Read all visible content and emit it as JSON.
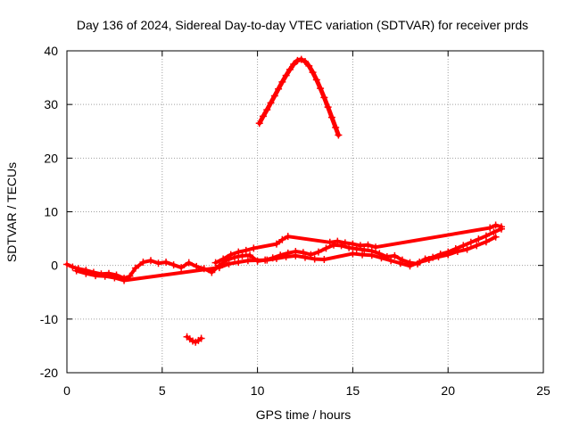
{
  "chart_data": {
    "type": "scatter",
    "title": "Day 136 of 2024, Sidereal Day-to-day VTEC variation (SDTVAR) for receiver prds",
    "xlabel": "GPS time / hours",
    "ylabel": "SDTVAR / TECUs",
    "xlim": [
      0,
      25
    ],
    "ylim": [
      -20,
      40
    ],
    "x_ticks": [
      0,
      5,
      10,
      15,
      20,
      25
    ],
    "y_ticks": [
      -20,
      -10,
      0,
      10,
      20,
      30,
      40
    ],
    "x_tick_labels": [
      "0",
      "5",
      "10",
      "15",
      "20",
      "25"
    ],
    "y_tick_labels": [
      "-20",
      "-10",
      "0",
      "10",
      "20",
      "30",
      "40"
    ],
    "grid": true,
    "marker_color": "#ff0000",
    "series": [
      {
        "name": "main-trace",
        "points": [
          [
            0.0,
            0.2
          ],
          [
            0.3,
            -0.3
          ],
          [
            0.6,
            -0.6
          ],
          [
            1.0,
            -0.9
          ],
          [
            1.4,
            -1.3
          ],
          [
            1.8,
            -1.6
          ],
          [
            2.2,
            -1.5
          ],
          [
            2.6,
            -1.8
          ],
          [
            3.0,
            -2.4
          ],
          [
            3.3,
            -2.0
          ],
          [
            3.6,
            -0.5
          ],
          [
            4.0,
            0.6
          ],
          [
            4.4,
            0.9
          ],
          [
            4.8,
            0.4
          ],
          [
            5.2,
            0.6
          ],
          [
            5.6,
            0.1
          ],
          [
            6.0,
            -0.4
          ],
          [
            6.4,
            0.5
          ],
          [
            6.8,
            -0.2
          ],
          [
            7.2,
            -0.6
          ],
          [
            7.6,
            -1.3
          ],
          [
            8.0,
            0.0
          ],
          [
            8.4,
            1.0
          ],
          [
            8.8,
            1.5
          ],
          [
            9.2,
            1.8
          ],
          [
            9.6,
            1.9
          ],
          [
            10.0,
            0.8
          ],
          [
            10.4,
            1.0
          ],
          [
            10.8,
            1.4
          ],
          [
            11.2,
            1.9
          ],
          [
            11.6,
            2.3
          ],
          [
            12.0,
            2.6
          ],
          [
            12.4,
            2.4
          ],
          [
            12.8,
            2.0
          ],
          [
            13.2,
            2.5
          ],
          [
            13.6,
            3.2
          ],
          [
            14.0,
            3.8
          ],
          [
            14.4,
            3.7
          ],
          [
            14.8,
            3.3
          ],
          [
            15.2,
            3.1
          ],
          [
            15.6,
            2.9
          ],
          [
            16.0,
            2.7
          ],
          [
            16.4,
            2.2
          ],
          [
            16.8,
            1.6
          ],
          [
            17.2,
            1.8
          ],
          [
            17.6,
            1.0
          ],
          [
            18.0,
            0.5
          ],
          [
            18.4,
            0.3
          ],
          [
            18.8,
            1.2
          ],
          [
            19.2,
            1.5
          ],
          [
            19.6,
            2.1
          ],
          [
            20.0,
            2.5
          ],
          [
            20.4,
            3.1
          ],
          [
            20.8,
            3.7
          ],
          [
            21.2,
            4.3
          ],
          [
            21.6,
            4.9
          ],
          [
            22.0,
            5.5
          ],
          [
            22.4,
            6.2
          ],
          [
            22.8,
            6.8
          ]
        ]
      },
      {
        "name": "lower-band",
        "points": [
          [
            0.5,
            -1.0
          ],
          [
            1.0,
            -1.5
          ],
          [
            1.5,
            -1.9
          ],
          [
            2.0,
            -2.0
          ],
          [
            2.5,
            -2.3
          ],
          [
            3.0,
            -2.8
          ],
          [
            8.0,
            -0.4
          ],
          [
            8.5,
            0.3
          ],
          [
            9.0,
            0.6
          ],
          [
            9.5,
            0.9
          ],
          [
            10.5,
            1.0
          ],
          [
            11.0,
            1.3
          ],
          [
            11.5,
            1.6
          ],
          [
            12.0,
            1.8
          ],
          [
            12.5,
            1.5
          ],
          [
            13.0,
            1.2
          ],
          [
            13.5,
            1.1
          ],
          [
            15.0,
            2.2
          ],
          [
            15.5,
            2.0
          ],
          [
            16.0,
            1.9
          ],
          [
            16.5,
            1.4
          ],
          [
            17.0,
            0.9
          ],
          [
            17.5,
            0.4
          ],
          [
            18.0,
            -0.1
          ],
          [
            18.5,
            0.6
          ],
          [
            19.0,
            1.1
          ],
          [
            19.5,
            1.6
          ],
          [
            20.0,
            2.0
          ],
          [
            20.5,
            2.6
          ],
          [
            21.0,
            3.0
          ],
          [
            21.5,
            3.7
          ],
          [
            22.0,
            4.4
          ],
          [
            22.5,
            5.3
          ]
        ]
      },
      {
        "name": "upper-band",
        "points": [
          [
            7.8,
            0.5
          ],
          [
            8.2,
            1.2
          ],
          [
            8.6,
            2.0
          ],
          [
            9.0,
            2.5
          ],
          [
            9.4,
            2.8
          ],
          [
            9.8,
            3.2
          ],
          [
            11.0,
            4.0
          ],
          [
            11.3,
            4.8
          ],
          [
            11.6,
            5.4
          ],
          [
            13.8,
            4.3
          ],
          [
            14.2,
            4.5
          ],
          [
            14.6,
            4.2
          ],
          [
            15.0,
            4.0
          ],
          [
            15.4,
            3.7
          ],
          [
            15.8,
            3.8
          ],
          [
            16.2,
            3.4
          ],
          [
            22.2,
            7.0
          ],
          [
            22.5,
            7.5
          ],
          [
            22.8,
            7.2
          ]
        ]
      },
      {
        "name": "arc",
        "points": [
          [
            10.1,
            26.5
          ],
          [
            10.3,
            27.8
          ],
          [
            10.5,
            29.0
          ],
          [
            10.7,
            30.3
          ],
          [
            10.9,
            31.6
          ],
          [
            11.1,
            32.9
          ],
          [
            11.3,
            34.2
          ],
          [
            11.5,
            35.4
          ],
          [
            11.7,
            36.5
          ],
          [
            11.9,
            37.5
          ],
          [
            12.1,
            38.2
          ],
          [
            12.3,
            38.4
          ],
          [
            12.5,
            38.0
          ],
          [
            12.7,
            37.2
          ],
          [
            12.9,
            36.0
          ],
          [
            13.1,
            34.6
          ],
          [
            13.3,
            33.0
          ],
          [
            13.5,
            31.3
          ],
          [
            13.7,
            29.5
          ],
          [
            13.9,
            27.6
          ],
          [
            14.1,
            25.7
          ],
          [
            14.25,
            24.3
          ]
        ]
      },
      {
        "name": "dip",
        "points": [
          [
            6.3,
            -13.3
          ],
          [
            6.45,
            -13.7
          ],
          [
            6.6,
            -14.1
          ],
          [
            6.75,
            -14.3
          ],
          [
            6.9,
            -14.0
          ],
          [
            7.05,
            -13.6
          ]
        ]
      }
    ]
  }
}
